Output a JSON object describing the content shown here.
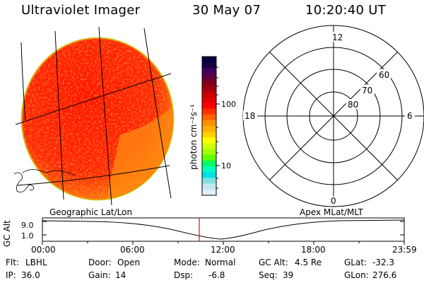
{
  "header": {
    "title": "Ultraviolet Imager",
    "date": "30 May 07",
    "time": "10:20:40 UT"
  },
  "colorbar": {
    "unit_label": "photon cm⁻²s⁻¹",
    "tick_labels": [
      "100",
      "10"
    ],
    "colors": [
      "#000040",
      "#1a0040",
      "#400060",
      "#600040",
      "#800020",
      "#a00010",
      "#c80000",
      "#e00000",
      "#ff0000",
      "#ff3000",
      "#ff6000",
      "#ff9000",
      "#ffb000",
      "#ffd000",
      "#ffff00",
      "#d0ff00",
      "#a0ff00",
      "#60ff00",
      "#00ff60",
      "#00ffc0",
      "#00e0e0",
      "#80e0e0",
      "#c0e8f0",
      "#e0f0ff"
    ]
  },
  "polar_plot": {
    "mlt_labels": {
      "top": "12",
      "right": "6",
      "bottom": "0",
      "left": "18"
    },
    "lat_labels": [
      "60",
      "70",
      "80"
    ]
  },
  "geo_image": {
    "fill_color": "#ff3a10",
    "edge_color": "#f59010"
  },
  "timeline": {
    "left_label": "Geographic Lat/Lon",
    "right_label": "Apex MLat/MLT",
    "ylabel": "GC Alt",
    "y_ticks": [
      "9.0",
      "1.0"
    ],
    "x_ticks": [
      "00:00",
      "06:00",
      "12:00",
      "18:00",
      "23:59"
    ],
    "marker_color": "#ff0000"
  },
  "info": {
    "row1": [
      {
        "label": "Flt:",
        "value": "LBHL"
      },
      {
        "label": "Door:",
        "value": "Open"
      },
      {
        "label": "Mode:",
        "value": "Normal"
      },
      {
        "label": "GC Alt:",
        "value": "4.5 Re"
      },
      {
        "label": "GLat:",
        "value": "-32.3"
      }
    ],
    "row2": [
      {
        "label": "IP:",
        "value": "36.0"
      },
      {
        "label": "Gain:",
        "value": "14"
      },
      {
        "label": "Dsp:",
        "value": "-6.8"
      },
      {
        "label": "Seq:",
        "value": "39"
      },
      {
        "label": "GLon:",
        "value": "276.6"
      }
    ]
  }
}
